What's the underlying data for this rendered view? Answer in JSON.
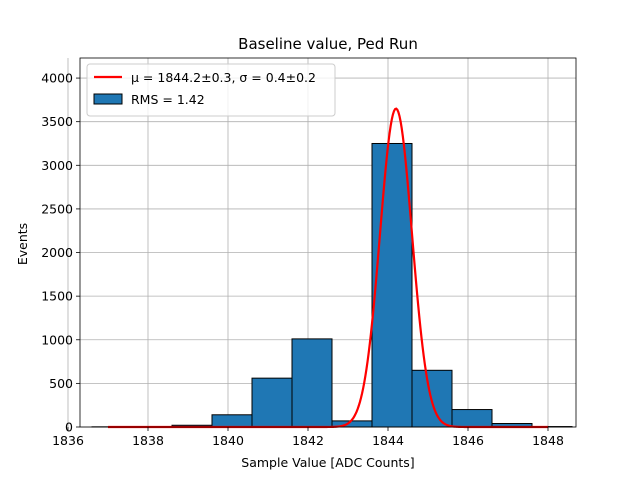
{
  "chart_data": {
    "type": "bar",
    "title": "Baseline value, Ped Run",
    "xlabel": "Sample Value [ADC Counts]",
    "ylabel": "Events",
    "xlim": [
      1836.3,
      1848.7
    ],
    "ylim": [
      0,
      4230
    ],
    "grid": true,
    "legend_placement": "top-left",
    "x_ticks": [
      1836,
      1838,
      1840,
      1842,
      1844,
      1846,
      1848
    ],
    "y_ticks": [
      0,
      500,
      1000,
      1500,
      2000,
      2500,
      3000,
      3500,
      4000
    ],
    "histogram": {
      "name": "RMS = 1.42",
      "color": "#1f77b4",
      "edge_color": "#000000",
      "bin_edges": [
        1836.6,
        1837.6,
        1838.6,
        1839.6,
        1840.6,
        1841.6,
        1842.6,
        1843.6,
        1844.6,
        1845.6,
        1846.6,
        1847.6,
        1848.6
      ],
      "counts": [
        2,
        5,
        20,
        140,
        560,
        1010,
        70,
        3250,
        650,
        200,
        40,
        5
      ]
    },
    "fit": {
      "name": "$\\mu = 1844.2 \\pm 0.3$, $\\sigma = 0.4 \\pm 0.2$",
      "legend_label": "μ = 1844.2±0.3, σ = 0.4±0.2",
      "color": "#ff0000",
      "type": "gaussian",
      "mu": 1844.2,
      "sigma": 0.4,
      "amplitude": 3650,
      "x_range": [
        1837.0,
        1848.0
      ]
    }
  }
}
